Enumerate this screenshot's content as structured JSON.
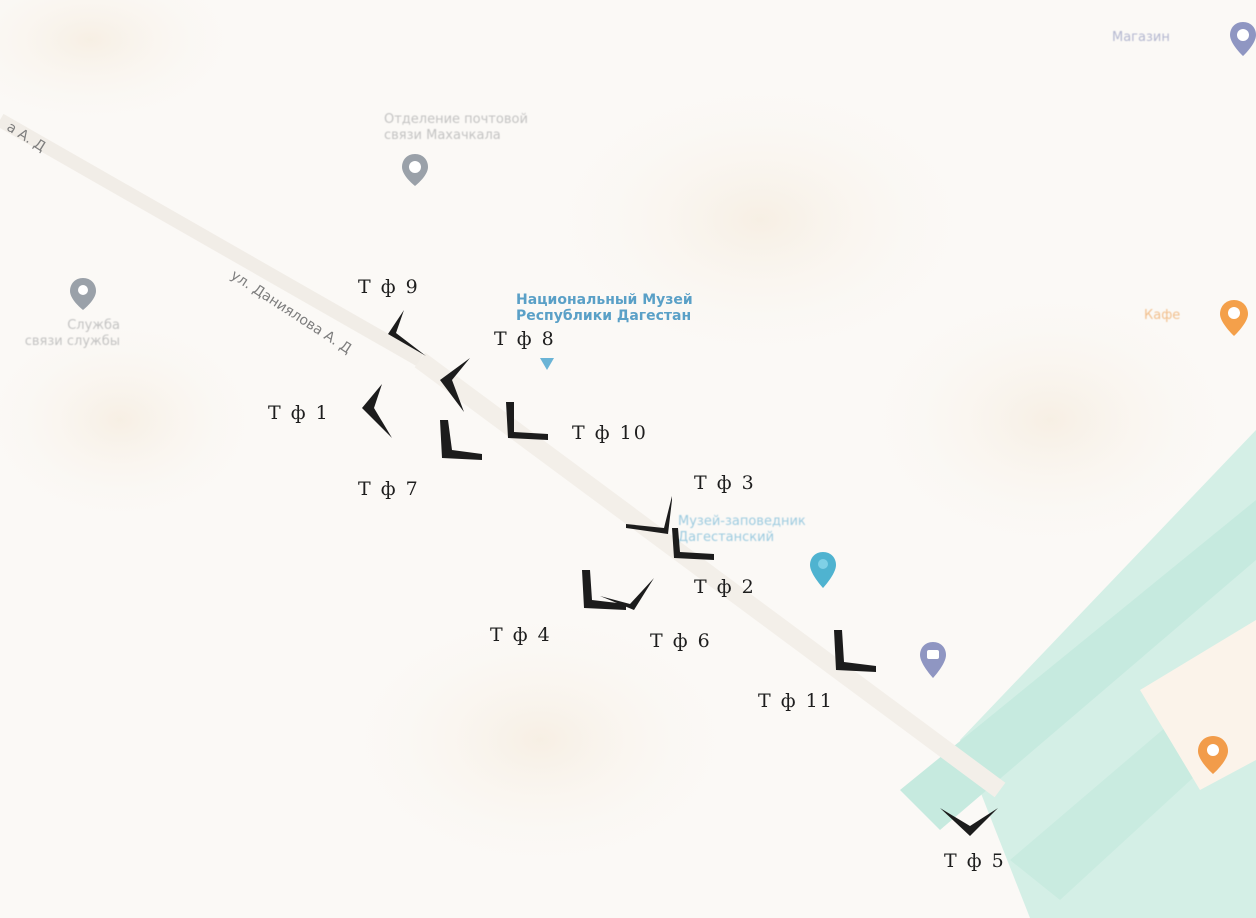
{
  "map": {
    "streets": [
      {
        "id": "street-left",
        "text": "а А. Д"
      },
      {
        "id": "street-main",
        "text": "ул. Даниялова А. Д"
      }
    ],
    "pois": [
      {
        "id": "poi-post",
        "lines": [
          "Отделение почтовой",
          "связи Махачкала"
        ],
        "icon": "gray-map-pin"
      },
      {
        "id": "poi-left",
        "lines": [
          "Служба",
          "связи службы"
        ],
        "icon": "gray-map-pin"
      },
      {
        "id": "poi-museum",
        "lines": [
          "Национальный Музей",
          "Республики Дагестан"
        ],
        "icon": "blue-map-pin"
      },
      {
        "id": "poi-museum2",
        "lines": [
          "Музей-заповедник",
          "Дагестанский"
        ],
        "icon": "teal-map-pin"
      },
      {
        "id": "poi-topright",
        "lines": [
          "Магазин"
        ],
        "icon": "purple-map-pin"
      },
      {
        "id": "poi-orange1",
        "lines": [
          "Кафе"
        ],
        "icon": "orange-map-pin"
      },
      {
        "id": "poi-purple2",
        "lines": [],
        "icon": "purple-map-pin"
      },
      {
        "id": "poi-orange2",
        "lines": [],
        "icon": "orange-map-pin"
      }
    ],
    "photo_points": [
      {
        "id": "tf-1",
        "label": "Т ф  1"
      },
      {
        "id": "tf-2",
        "label": "Т ф  2"
      },
      {
        "id": "tf-3",
        "label": "Т ф  3"
      },
      {
        "id": "tf-4",
        "label": "Т ф  4"
      },
      {
        "id": "tf-5",
        "label": "Т ф  5"
      },
      {
        "id": "tf-6",
        "label": "Т ф  6"
      },
      {
        "id": "tf-7",
        "label": "Т ф  7"
      },
      {
        "id": "tf-8",
        "label": "Т ф  8"
      },
      {
        "id": "tf-9",
        "label": "Т ф  9"
      },
      {
        "id": "tf-10",
        "label": "Т ф  10"
      },
      {
        "id": "tf-11",
        "label": "Т ф  11"
      }
    ],
    "colors": {
      "background": "#fbf9f6",
      "water": "#cdece2",
      "arrows": "#1c1c1c",
      "museum_text": "#5aa0c7",
      "orange_pin": "#f4a04a",
      "purple_pin": "#8f96c2",
      "gray_pin": "#9aa1a9"
    }
  }
}
